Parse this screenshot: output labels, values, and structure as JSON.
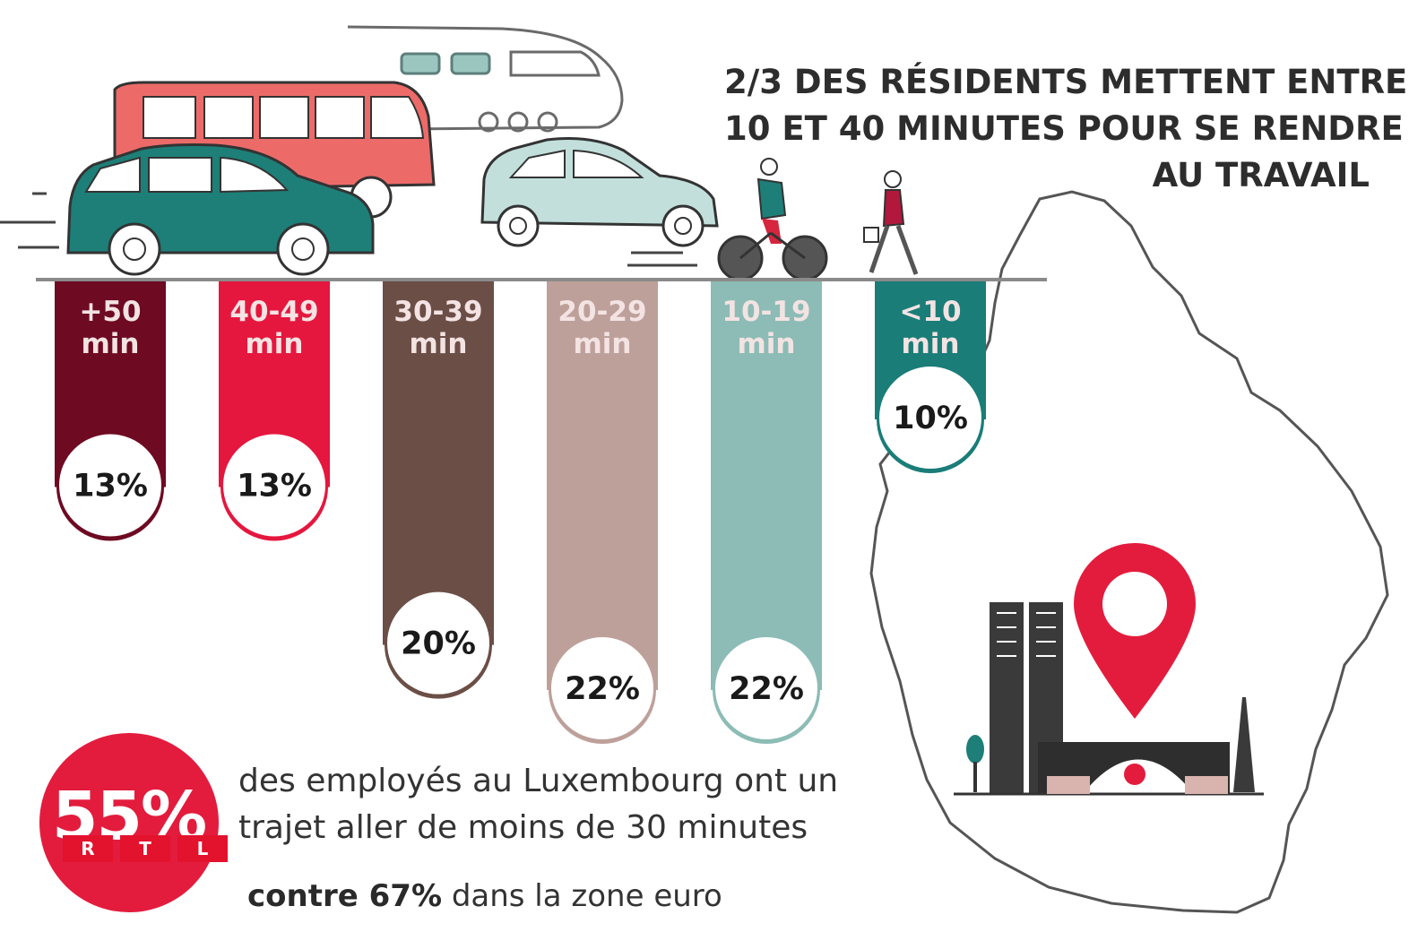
{
  "headline": {
    "line1": "2/3 DES RÉSIDENTS METTENT ENTRE",
    "line2": "10 ET 40 MINUTES POUR SE RENDRE",
    "line3": "AU TRAVAIL"
  },
  "colors": {
    "dark_maroon": "#6e0a22",
    "red": "#e5173e",
    "brown": "#6b4e46",
    "rose": "#bea09a",
    "mint": "#8cbcb5",
    "teal": "#1a7d78",
    "accent_red": "#e31c3d",
    "road": "#8a8a8a"
  },
  "chart_data": {
    "type": "bar",
    "title": "2/3 DES RÉSIDENTS METTENT ENTRE 10 ET 40 MINUTES POUR SE RENDRE AU TRAVAIL",
    "categories": [
      {
        "line1": "+50",
        "line2": "min"
      },
      {
        "line1": "40-49",
        "line2": "min"
      },
      {
        "line1": "30-39",
        "line2": "min"
      },
      {
        "line1": "20-29",
        "line2": "min"
      },
      {
        "line1": "10-19",
        "line2": "min"
      },
      {
        "line1": "<10",
        "line2": "min"
      }
    ],
    "values": [
      13,
      13,
      20,
      22,
      22,
      10
    ],
    "value_labels": [
      "13%",
      "13%",
      "20%",
      "22%",
      "22%",
      "10%"
    ],
    "unit": "%",
    "orientation": "vertical-hanging"
  },
  "summary": {
    "big_value": "55%",
    "line1": "des employés au Luxembourg ont un",
    "line2": "trajet aller de moins de 30 minutes",
    "compare_bold": "contre 67%",
    "compare_rest": " dans la zone euro"
  },
  "watermark": {
    "letters": [
      "R",
      "T",
      "L"
    ]
  }
}
